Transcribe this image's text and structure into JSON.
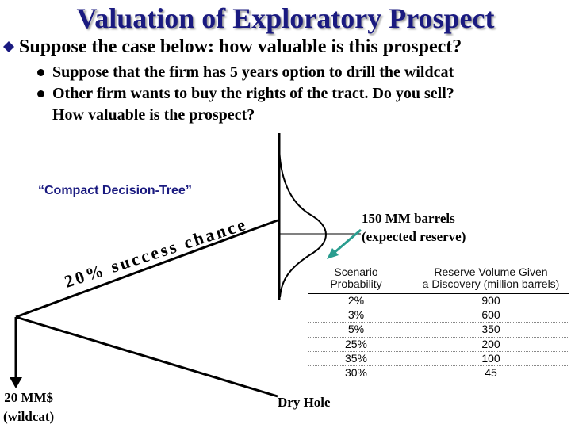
{
  "title": "Valuation of Exploratory Prospect",
  "lead": "Suppose the case below: how valuable is this prospect?",
  "bullets": [
    "Suppose that the firm has 5 years option to drill the wildcat",
    "Other firm wants to buy the rights of the tract. Do you sell?",
    "How valuable is the prospect?"
  ],
  "tree_label": "“Compact Decision-Tree”",
  "branch_success": "20% success chance",
  "cost_line1": "20 MM$",
  "cost_line2": "(wildcat)",
  "dry_hole": "Dry Hole",
  "reserve_line1": "150 MM barrels",
  "reserve_line2": "(expected reserve)",
  "scenario_table": {
    "col1_line1": "Scenario",
    "col1_line2": "Probability",
    "col2_line1": "Reserve Volume Given",
    "col2_line2": "a Discovery (million barrels)",
    "rows": [
      {
        "prob": "2%",
        "volume": "900"
      },
      {
        "prob": "3%",
        "volume": "600"
      },
      {
        "prob": "5%",
        "volume": "350"
      },
      {
        "prob": "25%",
        "volume": "200"
      },
      {
        "prob": "35%",
        "volume": "100"
      },
      {
        "prob": "30%",
        "volume": "45"
      }
    ]
  },
  "colors": {
    "title": "#1a1a80",
    "arrow": "#2a9d8f",
    "bullet": "#1a1a80"
  }
}
